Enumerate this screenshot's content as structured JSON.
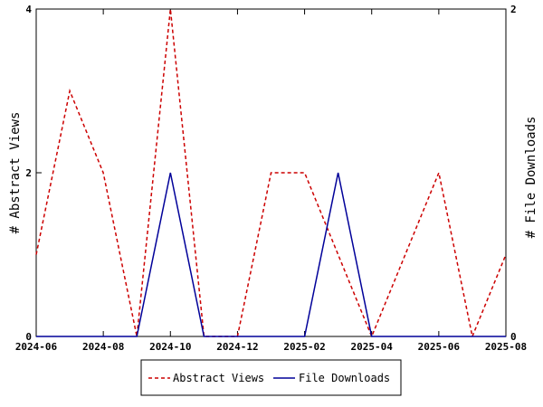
{
  "chart_data": {
    "type": "line",
    "x": [
      "2024-06",
      "2024-07",
      "2024-08",
      "2024-09",
      "2024-10",
      "2024-11",
      "2024-12",
      "2025-01",
      "2025-02",
      "2025-03",
      "2025-04",
      "2025-05",
      "2025-06",
      "2025-07",
      "2025-08"
    ],
    "x_ticks": [
      "2024-06",
      "2024-08",
      "2024-10",
      "2024-12",
      "2025-02",
      "2025-04",
      "2025-06",
      "2025-08"
    ],
    "series": [
      {
        "name": "Abstract Views",
        "axis": "left",
        "color": "#cc0000",
        "dash": "dashed",
        "values": [
          1,
          3,
          2,
          0,
          4,
          0,
          0,
          2,
          2,
          1,
          0,
          1,
          2,
          0,
          1
        ]
      },
      {
        "name": "File Downloads",
        "axis": "right",
        "color": "#000099",
        "dash": "solid",
        "values": [
          0,
          0,
          0,
          0,
          1,
          0,
          0,
          0,
          0,
          1,
          0,
          0,
          0,
          0,
          0
        ]
      }
    ],
    "ylabel": "# Abstract Views",
    "y2label": "# File Downloads",
    "ylim": [
      0,
      4
    ],
    "y2lim": [
      0,
      2
    ],
    "yticks": [
      0,
      2,
      4
    ],
    "y2ticks": [
      0,
      2
    ],
    "grid": false,
    "legend_position": "bottom"
  }
}
